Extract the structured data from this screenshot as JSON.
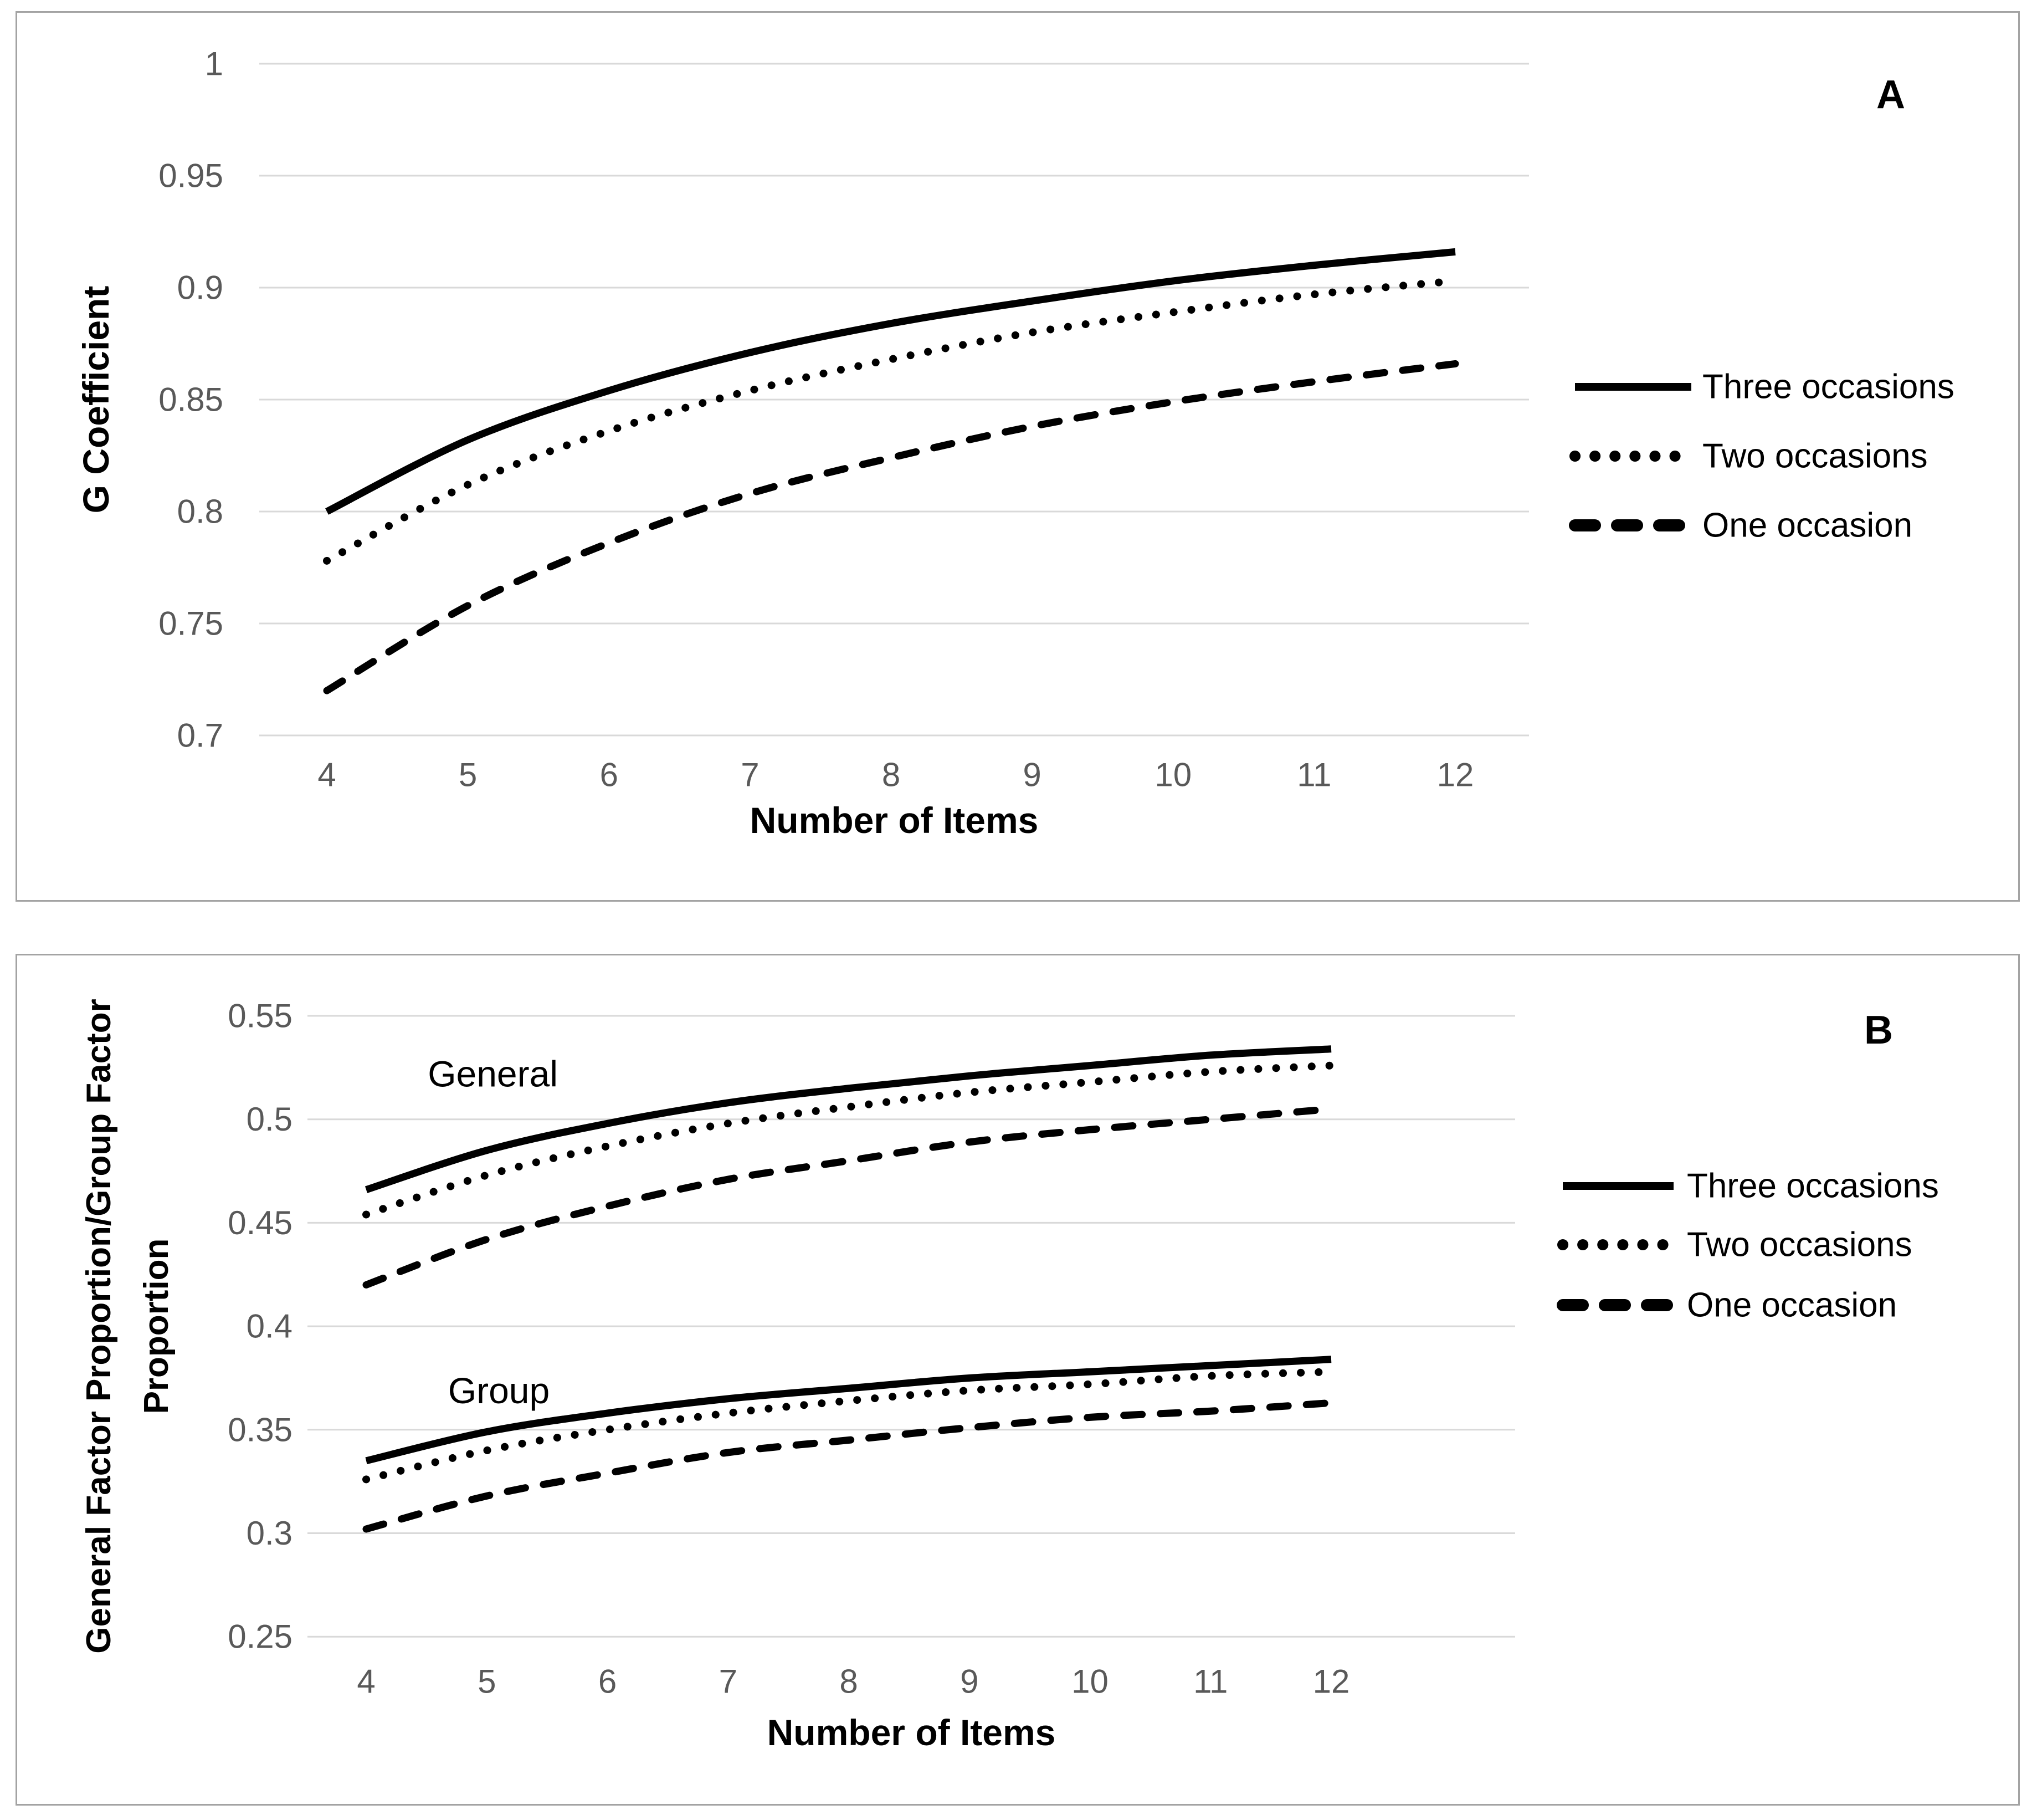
{
  "figure": {
    "background": "#ffffff",
    "panel_border_color": "#a3a3a3",
    "gridline_color": "#d9d9d9",
    "tick_color": "#595959",
    "line_color": "#000000"
  },
  "chart_data": [
    {
      "panel_label": "A",
      "type": "line",
      "title": "",
      "xlabel": "Number of Items",
      "ylabel_lines": [
        "G Coefficient"
      ],
      "x_categories": [
        4,
        5,
        6,
        7,
        8,
        9,
        10,
        11,
        12
      ],
      "xticks": [
        "4",
        "5",
        "6",
        "7",
        "8",
        "9",
        "10",
        "11",
        "12"
      ],
      "ylim": [
        0.7,
        1.0
      ],
      "ytick_step": 0.05,
      "ytick_values": [
        1,
        0.95,
        0.9,
        0.85,
        0.8,
        0.75,
        0.7
      ],
      "yticks": [
        "1",
        "0.95",
        "0.9",
        "0.85",
        "0.8",
        "0.75",
        "0.7"
      ],
      "grid": true,
      "legend_position": "right",
      "legend": [
        {
          "label": "Three occasions",
          "style": "solid"
        },
        {
          "label": "Two occasions",
          "style": "dotted"
        },
        {
          "label": "One occasion",
          "style": "dashed"
        }
      ],
      "series": [
        {
          "name": "Three occasions",
          "style": "solid",
          "values": [
            0.8,
            0.832,
            0.854,
            0.871,
            0.884,
            0.894,
            0.903,
            0.91,
            0.916
          ]
        },
        {
          "name": "Two occasions",
          "style": "dotted",
          "values": [
            0.778,
            0.812,
            0.836,
            0.854,
            0.868,
            0.88,
            0.889,
            0.897,
            0.903
          ]
        },
        {
          "name": "One occasion",
          "style": "dashed",
          "values": [
            0.72,
            0.758,
            0.786,
            0.808,
            0.824,
            0.838,
            0.849,
            0.858,
            0.866
          ]
        }
      ],
      "annotations": []
    },
    {
      "panel_label": "B",
      "type": "line",
      "title": "",
      "xlabel": "Number of Items",
      "ylabel_lines": [
        "General Factor Proportion/Group Factor",
        "Proportion"
      ],
      "x_categories": [
        4,
        5,
        6,
        7,
        8,
        9,
        10,
        11,
        12
      ],
      "xticks": [
        "4",
        "5",
        "6",
        "7",
        "8",
        "9",
        "10",
        "11",
        "12"
      ],
      "ylim": [
        0.25,
        0.55
      ],
      "ytick_step": 0.05,
      "ytick_values": [
        0.55,
        0.5,
        0.45,
        0.4,
        0.35,
        0.3,
        0.25
      ],
      "yticks": [
        "0.55",
        "0.5",
        "0.45",
        "0.4",
        "0.35",
        "0.3",
        "0.25"
      ],
      "grid": true,
      "legend_position": "right",
      "legend": [
        {
          "label": "Three occasions",
          "style": "solid"
        },
        {
          "label": "Two occasions",
          "style": "dotted"
        },
        {
          "label": "One occasion",
          "style": "dashed"
        }
      ],
      "series": [
        {
          "name": "Three occasions",
          "cluster": "General",
          "style": "solid",
          "values": [
            0.466,
            0.485,
            0.498,
            0.508,
            0.515,
            0.521,
            0.526,
            0.531,
            0.534
          ]
        },
        {
          "name": "Two occasions",
          "cluster": "General",
          "style": "dotted",
          "values": [
            0.454,
            0.473,
            0.487,
            0.498,
            0.506,
            0.513,
            0.518,
            0.523,
            0.526
          ]
        },
        {
          "name": "One occasion",
          "cluster": "General",
          "style": "dashed",
          "values": [
            0.42,
            0.442,
            0.458,
            0.471,
            0.48,
            0.489,
            0.495,
            0.5,
            0.505
          ]
        },
        {
          "name": "Three occasions",
          "cluster": "Group",
          "style": "solid",
          "values": [
            0.335,
            0.349,
            0.358,
            0.365,
            0.37,
            0.375,
            0.378,
            0.381,
            0.384
          ]
        },
        {
          "name": "Two occasions",
          "cluster": "Group",
          "style": "dotted",
          "values": [
            0.326,
            0.34,
            0.35,
            0.358,
            0.364,
            0.369,
            0.372,
            0.376,
            0.378
          ]
        },
        {
          "name": "One occasion",
          "cluster": "Group",
          "style": "dashed",
          "values": [
            0.302,
            0.318,
            0.329,
            0.339,
            0.345,
            0.351,
            0.356,
            0.359,
            0.363
          ]
        }
      ],
      "annotations": [
        {
          "text": "General",
          "x": 5.05,
          "y": 0.522
        },
        {
          "text": "Group",
          "x": 5.1,
          "y": 0.369
        }
      ]
    }
  ]
}
